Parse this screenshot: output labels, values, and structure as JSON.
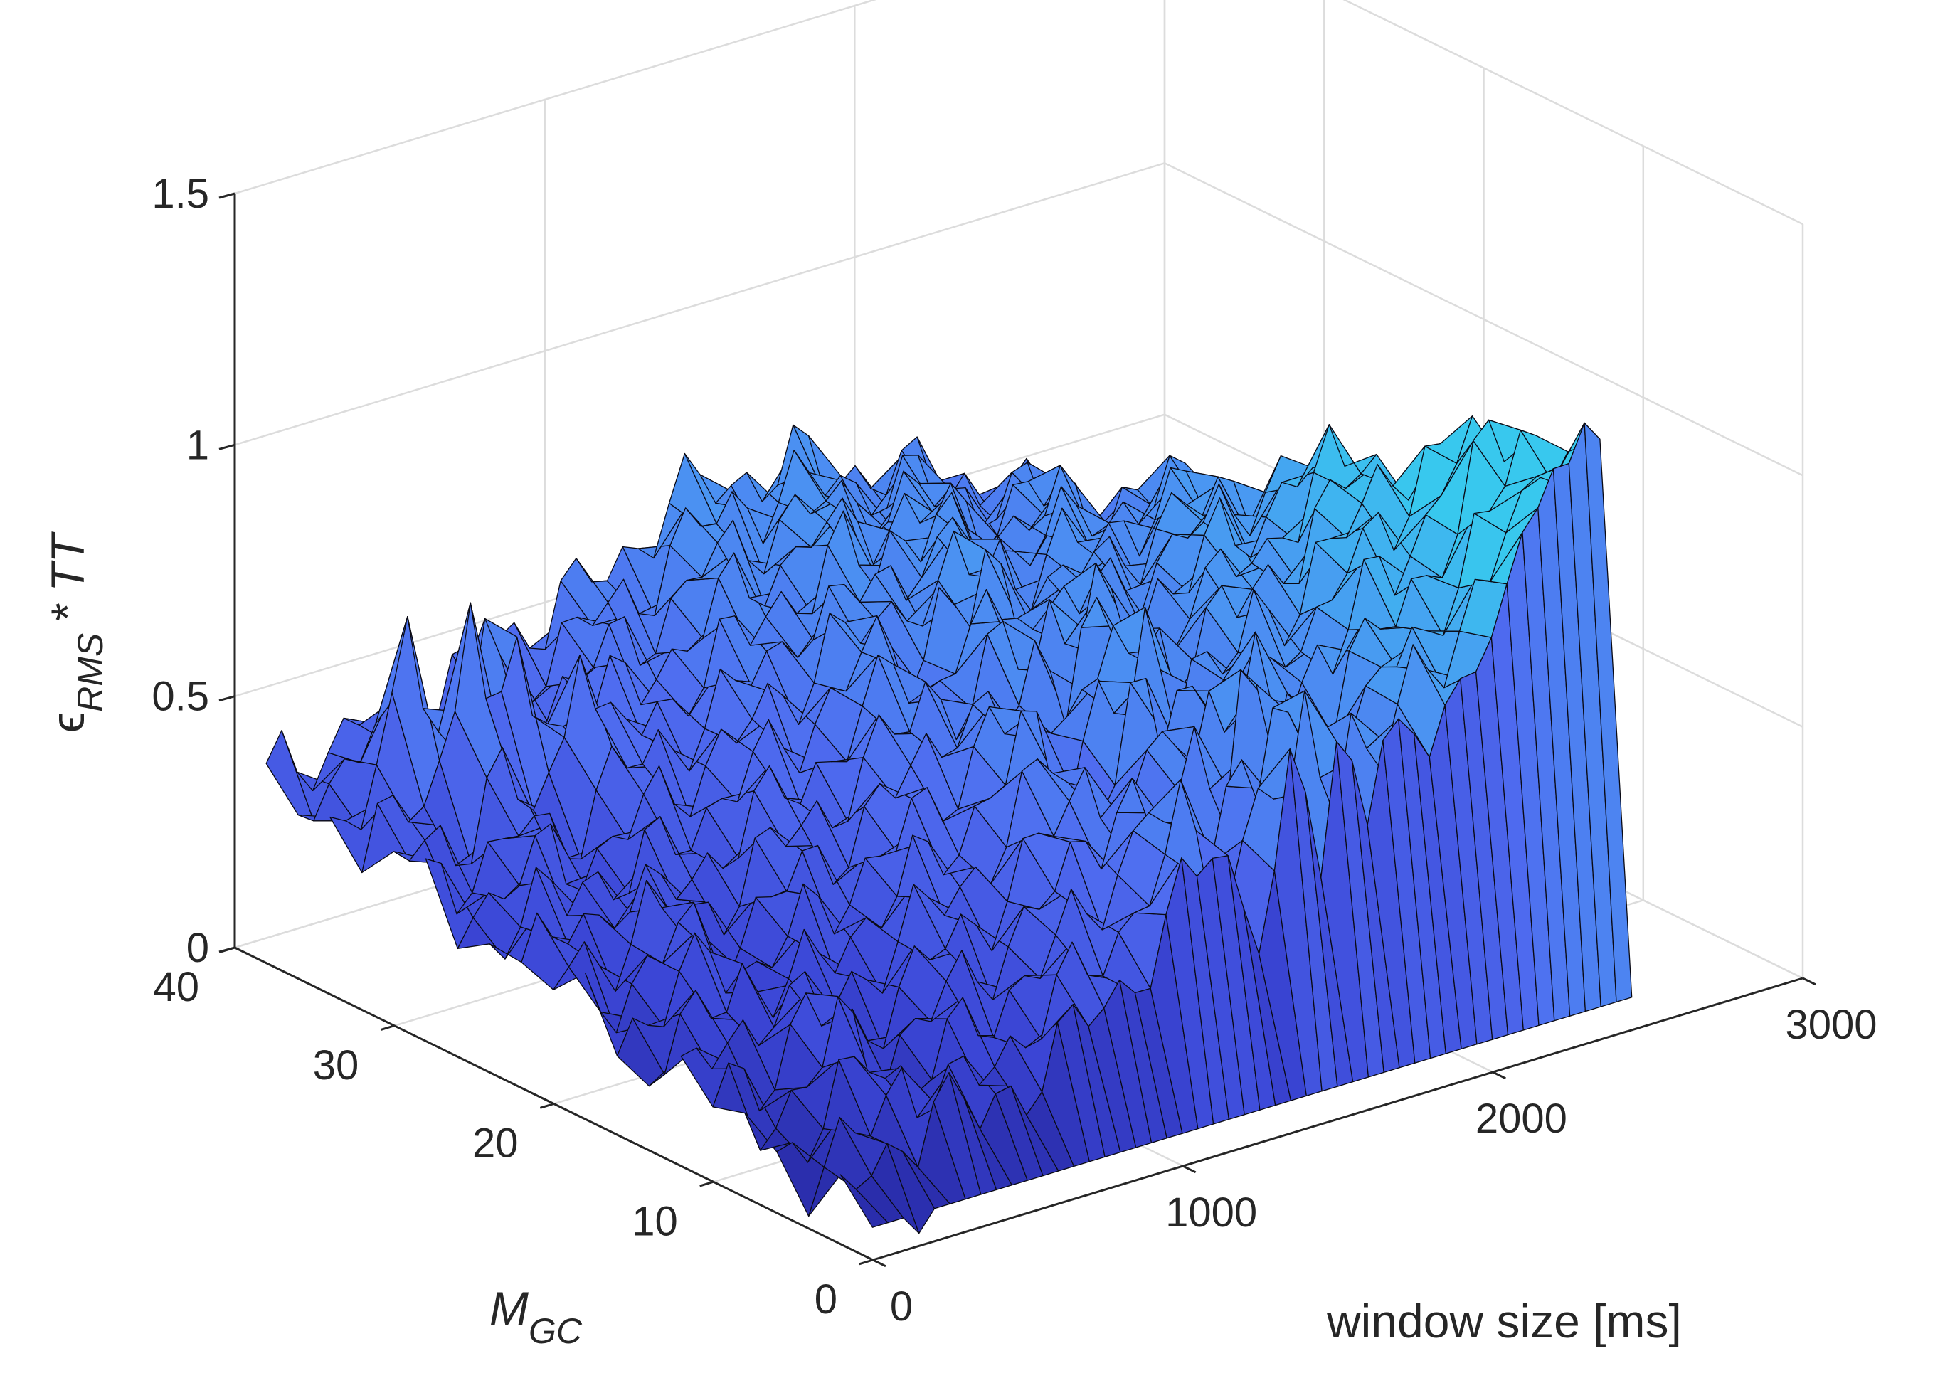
{
  "chart_data": {
    "type": "surface",
    "xlabel": "window size [ms]",
    "ylabel_main": "M",
    "ylabel_sub": "GC",
    "zlabel_eps": "ϵ",
    "zlabel_sub": "RMS",
    "zlabel_rest": "* TT",
    "xlim": [
      0,
      3000
    ],
    "ylim": [
      0,
      40
    ],
    "zlim": [
      0,
      1.5
    ],
    "x_ticks": [
      "0",
      "1000",
      "2000",
      "3000"
    ],
    "y_ticks": [
      "0",
      "10",
      "20",
      "30",
      "40"
    ],
    "z_ticks": [
      "0",
      "0.5",
      "1",
      "1.5"
    ],
    "grid": true,
    "colormap": [
      "#23239a",
      "#3b46d6",
      "#4f6cf0",
      "#4b93f2",
      "#38c8ee"
    ],
    "x_window_ms": [
      50,
      100,
      150,
      200,
      250,
      300,
      350,
      400,
      450,
      500,
      550,
      600,
      650,
      700,
      750,
      800,
      850,
      900,
      950,
      1000,
      1050,
      1100,
      1150,
      1200,
      1250,
      1300,
      1350,
      1400,
      1450,
      1500,
      1550,
      1600,
      1650,
      1700,
      1750,
      1800,
      1850,
      1900,
      1950,
      2000,
      2050,
      2100,
      2150,
      2200,
      2250,
      2300,
      2350,
      2400,
      2450,
      2500
    ],
    "y_mgc": [
      1,
      3,
      5,
      7,
      9,
      11,
      13,
      15,
      17,
      19,
      21,
      23,
      25,
      27,
      29,
      31,
      33,
      35,
      37,
      39
    ],
    "z_profile_back_row": [
      0.35,
      0.37,
      0.36,
      0.38,
      0.37,
      0.36,
      0.38,
      0.37,
      0.36,
      0.37,
      0.39,
      0.4,
      0.42,
      0.44,
      0.45,
      0.47,
      0.48,
      0.5,
      0.5,
      0.52,
      0.52,
      0.54,
      0.55,
      0.57,
      0.6,
      0.62,
      0.64,
      0.65,
      0.66,
      0.66,
      0.65,
      0.66,
      0.65,
      0.64,
      0.65,
      0.64,
      0.62,
      0.62,
      0.6,
      0.58,
      0.57,
      0.56,
      0.55,
      0.55,
      0.52,
      0.5,
      0.47,
      0.45,
      0.42,
      0.4
    ],
    "z_profile_front_row": [
      0.05,
      0.06,
      0.07,
      0.08,
      0.12,
      0.16,
      0.22,
      0.18,
      0.15,
      0.12,
      0.14,
      0.16,
      0.18,
      0.2,
      0.22,
      0.24,
      0.26,
      0.28,
      0.3,
      0.33,
      0.36,
      0.4,
      0.45,
      0.48,
      0.55,
      0.5,
      0.4,
      0.35,
      0.45,
      0.6,
      0.55,
      0.45,
      0.7,
      0.62,
      0.52,
      0.66,
      0.58,
      0.55,
      0.62,
      0.72,
      0.7,
      0.74,
      0.8,
      0.86,
      0.88,
      0.95,
      1.0,
      1.1,
      1.18,
      1.18
    ],
    "z_peaks": [
      {
        "x_ms": 400,
        "mgc": 33,
        "z": 0.72
      },
      {
        "x_ms": 550,
        "mgc": 34,
        "z": 0.75
      },
      {
        "x_ms": 300,
        "mgc": 35,
        "z": 0.68
      },
      {
        "x_ms": 650,
        "mgc": 31,
        "z": 0.6
      },
      {
        "x_ms": 2350,
        "mgc": 2,
        "z": 1.18
      },
      {
        "x_ms": 2300,
        "mgc": 3,
        "z": 1.02
      },
      {
        "x_ms": 2200,
        "mgc": 2,
        "z": 0.88
      },
      {
        "x_ms": 2050,
        "mgc": 4,
        "z": 0.74
      },
      {
        "x_ms": 1850,
        "mgc": 2,
        "z": 0.7
      }
    ]
  }
}
